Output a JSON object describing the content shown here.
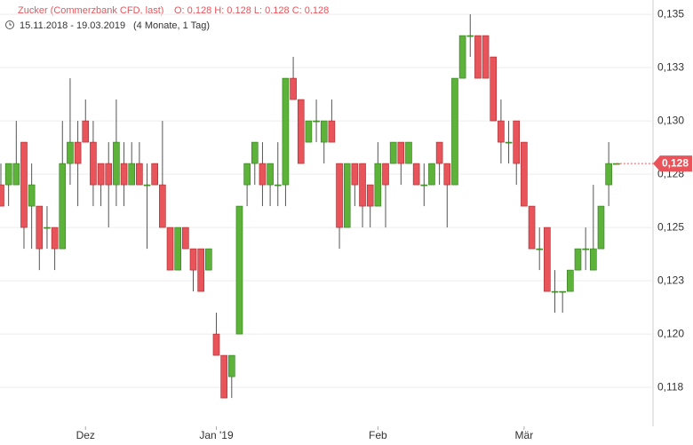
{
  "header": {
    "name": "Zucker (Commerzbank CFD, last)",
    "ohlc": "O: 0,128  H: 0,128  L: 0,128  C: 0,128",
    "range": "15.11.2018 - 19.03.2019",
    "period": "(4 Monate, 1 Tag)"
  },
  "chart_data": {
    "type": "candlestick",
    "categories": [
      null,
      null,
      null,
      null,
      null,
      null,
      null,
      null,
      null,
      null,
      null,
      "Dez",
      null,
      null,
      null,
      null,
      null,
      null,
      null,
      null,
      null,
      null,
      null,
      null,
      null,
      null,
      null,
      null,
      "Jan '19",
      null,
      null,
      null,
      null,
      null,
      null,
      null,
      null,
      null,
      null,
      null,
      null,
      null,
      null,
      null,
      null,
      null,
      null,
      null,
      null,
      "Feb",
      null,
      null,
      null,
      null,
      null,
      null,
      null,
      null,
      null,
      null,
      null,
      null,
      null,
      null,
      null,
      null,
      null,
      null,
      "Mär",
      null,
      null,
      null,
      null,
      null,
      null,
      null,
      null,
      null,
      null,
      null,
      null
    ],
    "open": [
      0.127,
      0.127,
      0.127,
      0.129,
      0.126,
      0.126,
      0.125,
      0.125,
      0.124,
      0.128,
      0.129,
      0.13,
      0.129,
      0.128,
      0.128,
      0.127,
      0.128,
      0.127,
      0.128,
      0.127,
      0.128,
      0.127,
      0.125,
      0.123,
      0.125,
      0.124,
      0.124,
      0.123,
      0.12,
      0.119,
      0.118,
      0.12,
      0.127,
      0.128,
      0.128,
      0.127,
      0.127,
      0.127,
      0.132,
      0.131,
      0.129,
      0.13,
      0.129,
      0.13,
      0.128,
      0.125,
      0.128,
      0.128,
      0.127,
      0.126,
      0.128,
      0.128,
      0.129,
      0.128,
      0.128,
      0.127,
      0.127,
      0.129,
      0.128,
      0.127,
      0.132,
      0.134,
      0.134,
      0.134,
      0.133,
      0.13,
      0.129,
      0.13,
      0.129,
      0.126,
      0.124,
      0.125,
      0.122,
      0.122,
      0.122,
      0.123,
      0.124,
      0.123,
      0.124,
      0.127,
      0.128
    ],
    "high": [
      0.128,
      0.128,
      0.13,
      0.129,
      0.128,
      0.126,
      0.126,
      0.125,
      0.13,
      0.132,
      0.13,
      0.131,
      0.13,
      0.128,
      0.129,
      0.131,
      0.129,
      0.129,
      0.129,
      0.128,
      0.128,
      0.13,
      0.125,
      0.125,
      0.125,
      0.124,
      0.124,
      0.124,
      0.121,
      0.119,
      0.119,
      0.126,
      0.128,
      0.129,
      0.129,
      0.128,
      0.129,
      0.132,
      0.133,
      0.131,
      0.13,
      0.131,
      0.13,
      0.131,
      0.128,
      0.128,
      0.128,
      0.128,
      0.127,
      0.129,
      0.128,
      0.129,
      0.129,
      0.129,
      0.128,
      0.128,
      0.128,
      0.129,
      0.128,
      0.132,
      0.134,
      0.135,
      0.134,
      0.134,
      0.133,
      0.131,
      0.13,
      0.13,
      0.129,
      0.126,
      0.125,
      0.125,
      0.123,
      0.122,
      0.123,
      0.124,
      0.125,
      0.127,
      0.126,
      0.129,
      0.128
    ],
    "low": [
      0.126,
      0.126,
      0.127,
      0.124,
      0.124,
      0.123,
      0.124,
      0.123,
      0.124,
      0.127,
      0.126,
      0.129,
      0.126,
      0.126,
      0.125,
      0.126,
      0.126,
      0.127,
      0.127,
      0.124,
      0.127,
      0.125,
      0.123,
      0.123,
      0.124,
      0.122,
      0.122,
      0.123,
      0.119,
      0.117,
      0.117,
      0.12,
      0.126,
      0.127,
      0.126,
      0.126,
      0.126,
      0.126,
      0.131,
      0.128,
      0.129,
      0.129,
      0.128,
      0.129,
      0.124,
      0.125,
      0.126,
      0.125,
      0.125,
      0.126,
      0.125,
      0.128,
      0.127,
      0.128,
      0.127,
      0.126,
      0.127,
      0.127,
      0.125,
      0.127,
      0.132,
      0.133,
      0.132,
      0.132,
      0.13,
      0.128,
      0.128,
      0.127,
      0.126,
      0.124,
      0.123,
      0.122,
      0.121,
      0.121,
      0.122,
      0.123,
      0.123,
      0.123,
      0.124,
      0.126,
      0.128
    ],
    "close": [
      0.126,
      0.128,
      0.128,
      0.125,
      0.127,
      0.124,
      0.125,
      0.124,
      0.128,
      0.129,
      0.128,
      0.129,
      0.127,
      0.127,
      0.127,
      0.129,
      0.127,
      0.128,
      0.127,
      0.127,
      0.127,
      0.125,
      0.123,
      0.125,
      0.124,
      0.123,
      0.122,
      0.124,
      0.119,
      0.117,
      0.119,
      0.126,
      0.128,
      0.129,
      0.127,
      0.128,
      0.127,
      0.132,
      0.131,
      0.128,
      0.13,
      0.13,
      0.13,
      0.129,
      0.125,
      0.128,
      0.127,
      0.126,
      0.126,
      0.128,
      0.127,
      0.129,
      0.128,
      0.129,
      0.127,
      0.127,
      0.128,
      0.128,
      0.127,
      0.132,
      0.134,
      0.134,
      0.132,
      0.132,
      0.13,
      0.129,
      0.129,
      0.128,
      0.126,
      0.124,
      0.124,
      0.122,
      0.122,
      0.122,
      0.123,
      0.124,
      0.124,
      0.124,
      0.126,
      0.128,
      0.128
    ],
    "up_color": "#5db33a",
    "down_color": "#e8545a",
    "ylim": [
      0.11567,
      0.13567
    ],
    "yticks": [
      {
        "value": 0.1175,
        "label": "0,118"
      },
      {
        "value": 0.12,
        "label": "0,120"
      },
      {
        "value": 0.1225,
        "label": "0,123"
      },
      {
        "value": 0.125,
        "label": "0,125"
      },
      {
        "value": 0.1275,
        "label": "0,128"
      },
      {
        "value": 0.13,
        "label": "0,130"
      },
      {
        "value": 0.1325,
        "label": "0,133"
      },
      {
        "value": 0.135,
        "label": "0,135"
      }
    ],
    "grid": true,
    "last_price": {
      "value": 0.128,
      "label": "0,128"
    }
  }
}
